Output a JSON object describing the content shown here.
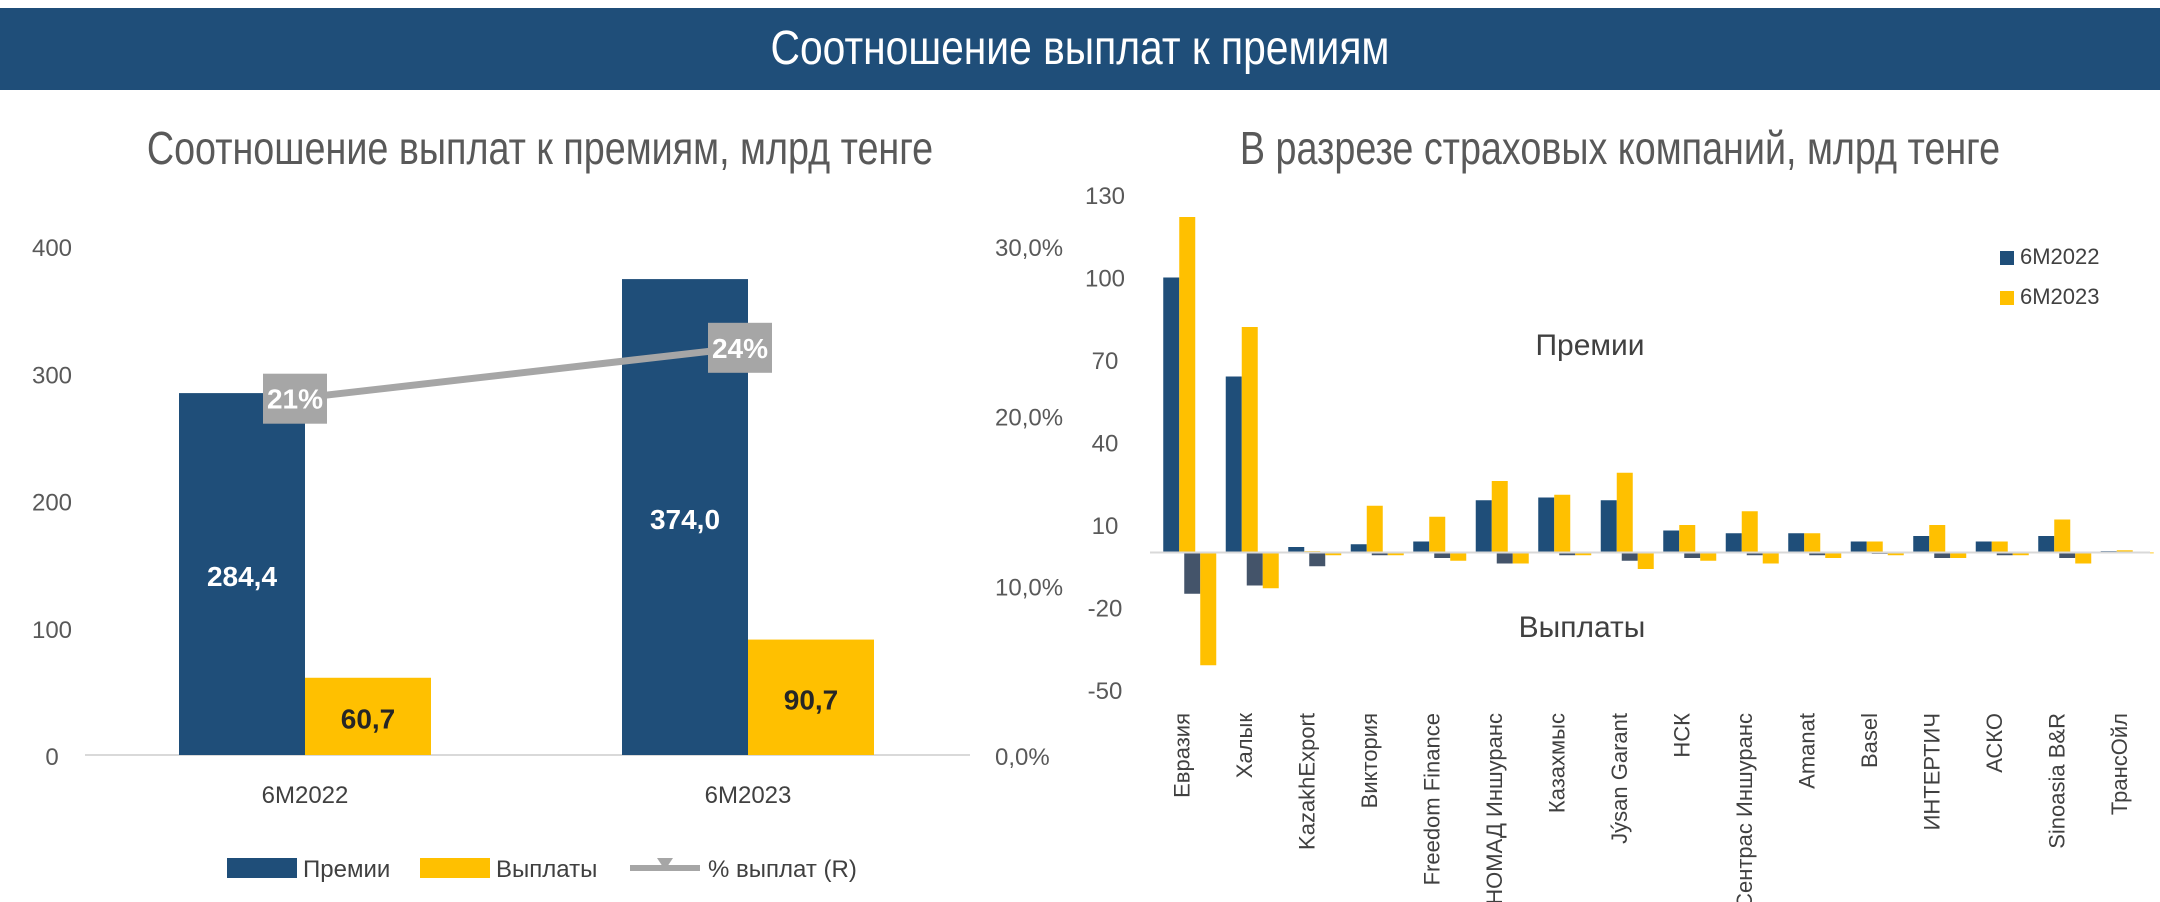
{
  "banner": {
    "title": "Соотношение выплат к премиям"
  },
  "charts": {
    "left_title": "Соотношение выплат к премиям, млрд тенге",
    "right_title": "В разрезе страховых компаний, млрд тенге"
  },
  "chart_data": [
    {
      "type": "bar",
      "title": "Соотношение выплат к премиям, млрд тенге",
      "categories": [
        "6М2022",
        "6М2023"
      ],
      "series": [
        {
          "name": "Премии",
          "values": [
            284.4,
            374.0
          ],
          "labels": [
            "284,4",
            "374,0"
          ],
          "color": "#1f4e79"
        },
        {
          "name": "Выплаты",
          "values": [
            60.7,
            90.7
          ],
          "labels": [
            "60,7",
            "90,7"
          ],
          "color": "#ffc000"
        }
      ],
      "line_series": {
        "name": "% выплат (R)",
        "values": [
          21,
          24
        ],
        "labels": [
          "21%",
          "24%"
        ],
        "color": "#a6a6a6",
        "axis": "right"
      },
      "ylim": [
        0,
        400
      ],
      "yticks": [
        "0",
        "100",
        "200",
        "300",
        "400"
      ],
      "y2lim": [
        0,
        30
      ],
      "y2ticks": [
        "0,0%",
        "10,0%",
        "20,0%",
        "30,0%"
      ],
      "legend": "bottom"
    },
    {
      "type": "bar",
      "title": "В разрезе страховых компаний, млрд тенге",
      "categories": [
        "Евразия",
        "Халык",
        "KazakhExport",
        "Виктория",
        "Freedom Finance",
        "НОМАД Иншуранс",
        "Казахмыс",
        "Jýsan Garant",
        "НСК",
        "Сентрас Иншуранс",
        "Amanat",
        "Basel",
        "ИНТЕРТИЧ",
        "АСКО",
        "Sinoasia B&R",
        "ТрансОйл"
      ],
      "series": [
        {
          "name": "6М2022",
          "color": "#1f4e79",
          "premiums": [
            100,
            64,
            2,
            3,
            4,
            19,
            20,
            19,
            8,
            7,
            7,
            4,
            6,
            4,
            6,
            0.5
          ],
          "payouts": [
            -15,
            -12,
            -5,
            -1,
            -2,
            -4,
            -1,
            -3,
            -2,
            -1,
            -1,
            -0.5,
            -2,
            -1,
            -2,
            -0.3
          ]
        },
        {
          "name": "6М2023",
          "color": "#ffc000",
          "premiums": [
            122,
            82,
            0.5,
            17,
            13,
            26,
            21,
            29,
            10,
            15,
            7,
            4,
            10,
            4,
            12,
            0.8
          ],
          "payouts": [
            -41,
            -13,
            -1,
            -1,
            -3,
            -4,
            -1,
            -6,
            -3,
            -4,
            -2,
            -1,
            -2,
            -1,
            -4,
            -0.3
          ]
        }
      ],
      "annotations": [
        "Премии",
        "Выплаты"
      ],
      "ylim": [
        -50,
        130
      ],
      "yticks": [
        "-50",
        "-20",
        "10",
        "40",
        "70",
        "100",
        "130"
      ],
      "legend": "top-right"
    }
  ]
}
